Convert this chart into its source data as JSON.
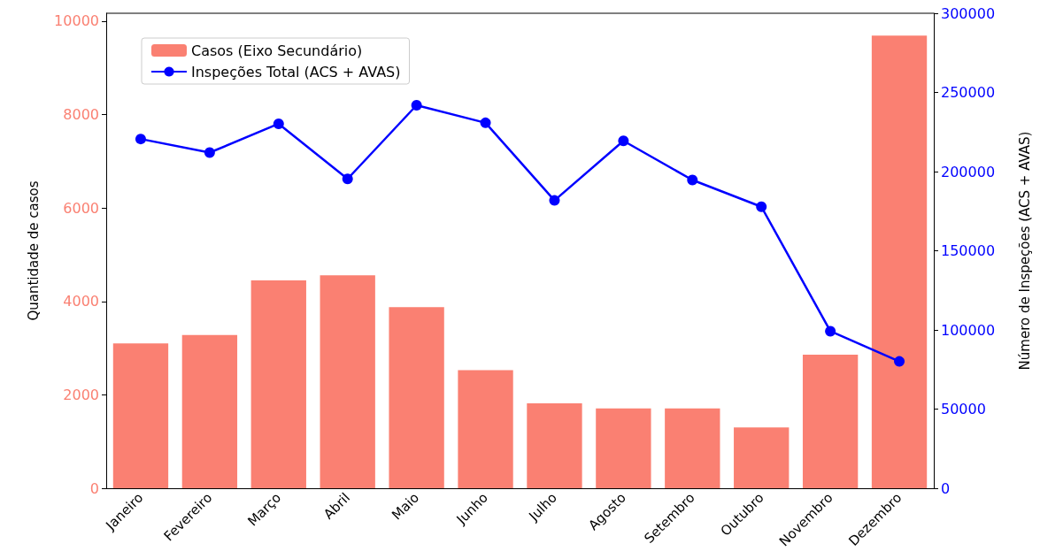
{
  "chart_data": {
    "type": "bar",
    "categories": [
      "Janeiro",
      "Fevereiro",
      "Março",
      "Abril",
      "Maio",
      "Junho",
      "Julho",
      "Agosto",
      "Setembro",
      "Outubro",
      "Novembro",
      "Dezembro"
    ],
    "series": [
      {
        "name": "Casos (Eixo Secundário)",
        "color": "#fa8072",
        "values": [
          3100,
          3280,
          4450,
          4560,
          3880,
          2530,
          1820,
          1710,
          1710,
          1300,
          2860,
          9690
        ]
      },
      {
        "name": "Inspeções Total (ACS + AVAS)",
        "type": "line",
        "axis": "y2",
        "color": "#0000ff",
        "marker": "circle",
        "line_style": "solid",
        "values": [
          220600,
          212000,
          230200,
          195400,
          241900,
          230800,
          181800,
          219400,
          194700,
          177800,
          99200,
          80100
        ]
      }
    ],
    "ylabel": "Quantidade de casos",
    "y2label": "Número de Inspeções (ACS + AVAS)",
    "ylim": [
      0,
      10170
    ],
    "yticks": [
      0,
      2000,
      4000,
      6000,
      8000,
      10000
    ],
    "y2lim": [
      0,
      300000
    ],
    "y2ticks": [
      0,
      50000,
      100000,
      150000,
      200000,
      250000,
      300000
    ],
    "grid": false,
    "legend": "top left"
  }
}
